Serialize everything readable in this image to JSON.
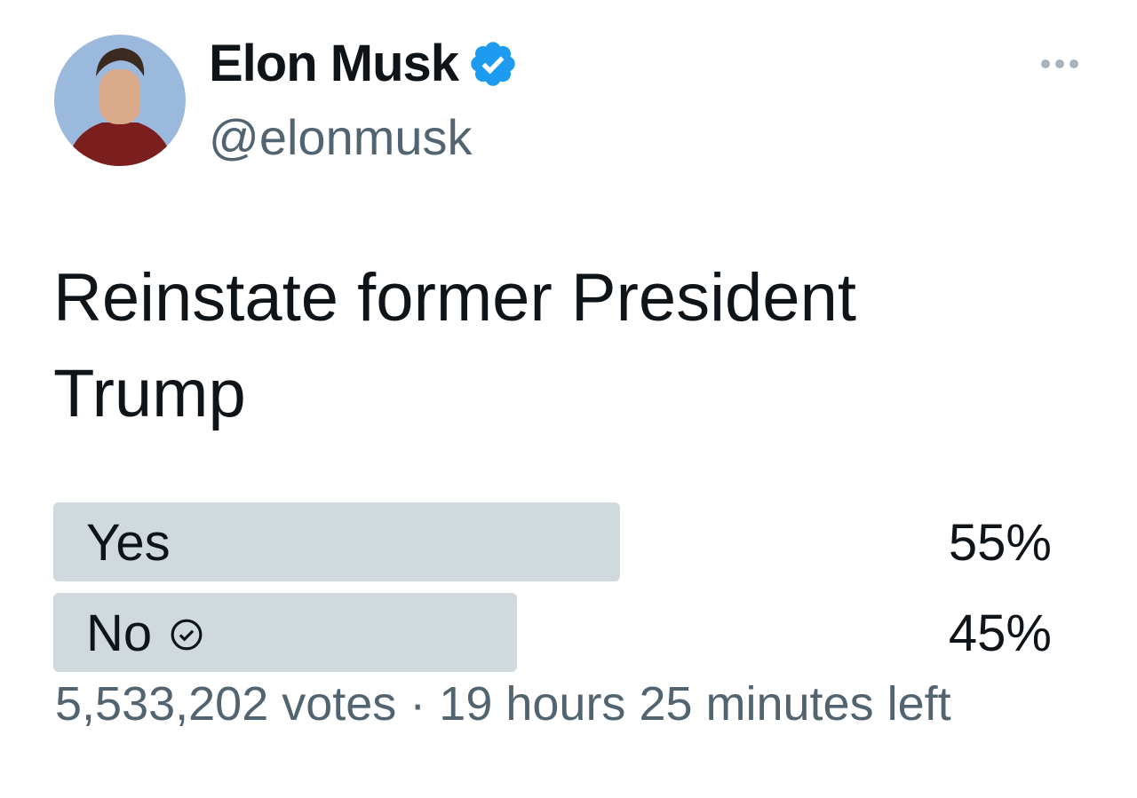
{
  "author": {
    "name": "Elon Musk",
    "handle": "@elonmusk"
  },
  "tweet": {
    "text_lines": [
      "Reinstate former President",
      "Trump"
    ]
  },
  "poll": {
    "options": [
      {
        "label": "Yes",
        "percent": {
          "value": 55,
          "label": "55%"
        }
      },
      {
        "label": "No",
        "percent": {
          "value": 45,
          "label": "45%"
        }
      }
    ],
    "footer": "5,533,202 votes · 19 hours 25 minutes left"
  }
}
